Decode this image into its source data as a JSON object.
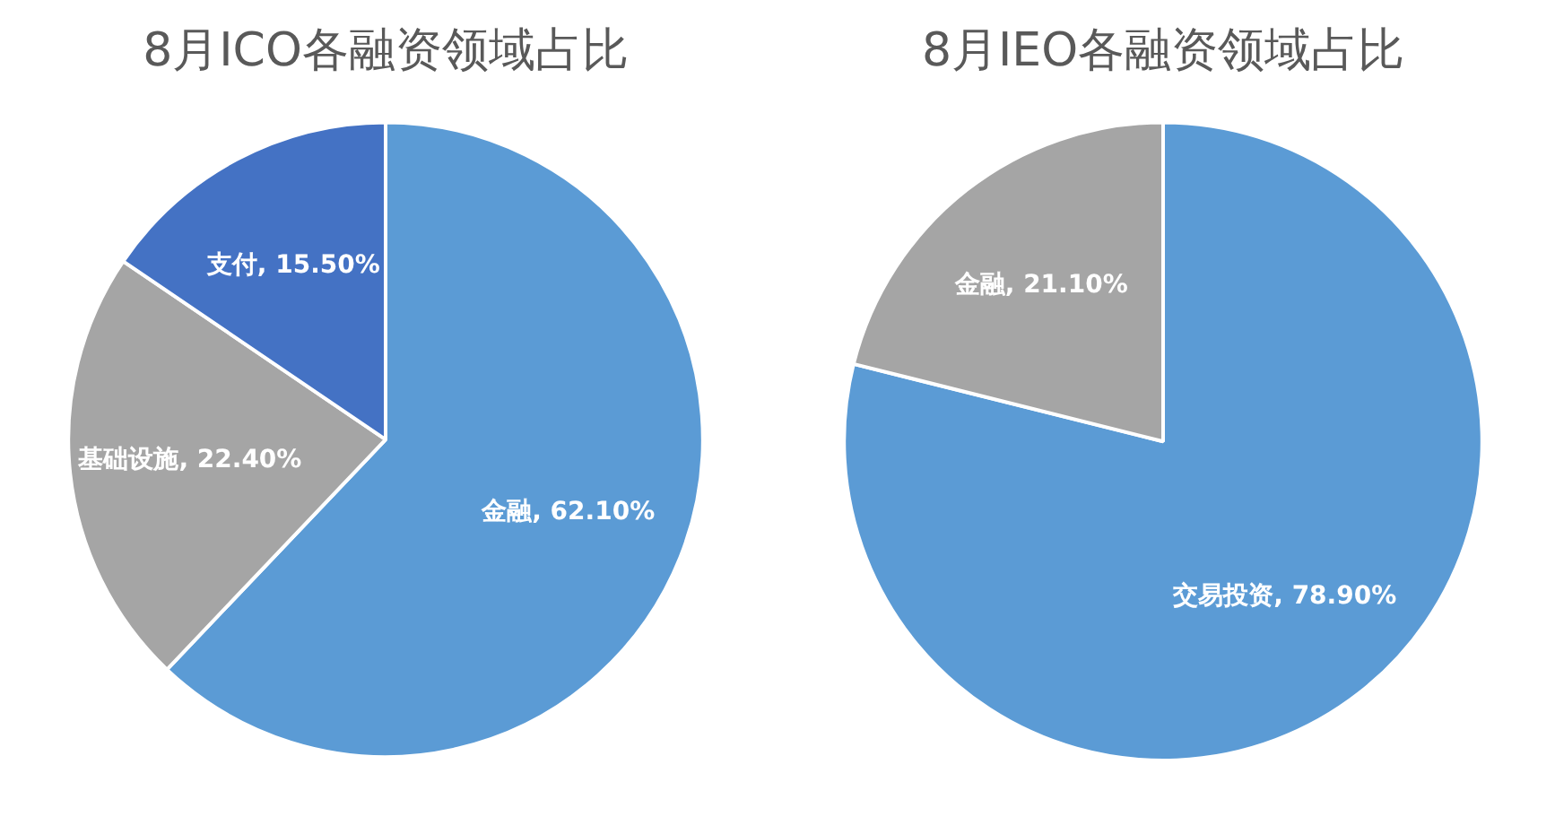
{
  "chart_data": [
    {
      "type": "pie",
      "title": "8月ICO各融资领域占比",
      "categories": [
        "金融",
        "基础设施",
        "支付"
      ],
      "values": [
        62.1,
        22.4,
        15.5
      ],
      "value_labels": [
        "62.10%",
        "22.40%",
        "15.50%"
      ],
      "colors": [
        "#5b9bd5",
        "#a5a5a5",
        "#4472c4"
      ],
      "legend": false
    },
    {
      "type": "pie",
      "title": "8月IEO各融资领域占比",
      "categories": [
        "交易投资",
        "金融"
      ],
      "values": [
        78.9,
        21.1
      ],
      "value_labels": [
        "78.90%",
        "21.10%"
      ],
      "colors": [
        "#5b9bd5",
        "#a5a5a5"
      ],
      "legend": false
    }
  ]
}
